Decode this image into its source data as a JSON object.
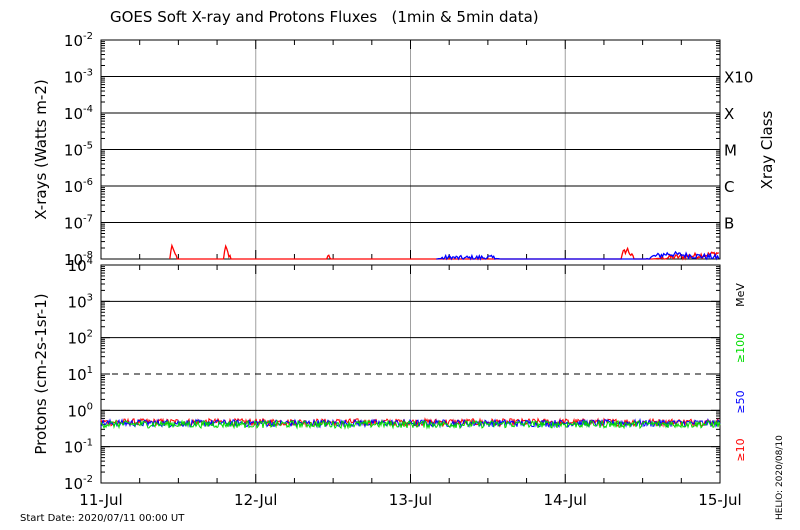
{
  "title": "GOES Soft X-ray and Protons Fluxes   (1min & 5min data)",
  "footer": {
    "start_date": "Start Date: 2020/07/11 00:00 UT",
    "stamp": "HELIO: 2020/08/10"
  },
  "colors": {
    "red": "#ff0000",
    "blue": "#0000ff",
    "green": "#00dd00",
    "grid": "#a0a0a0"
  },
  "chart_data": [
    {
      "type": "line",
      "title": "",
      "ylabel": "X-rays (Watts m-2)",
      "y2label": "Xray Class",
      "yscale": "log",
      "ylim": [
        1e-08,
        0.01
      ],
      "y_ticks": [
        {
          "base": "10",
          "exp": "-2",
          "value": 0.01
        },
        {
          "base": "10",
          "exp": "-3",
          "value": 0.001
        },
        {
          "base": "10",
          "exp": "-4",
          "value": 0.0001
        },
        {
          "base": "10",
          "exp": "-5",
          "value": 1e-05
        },
        {
          "base": "10",
          "exp": "-6",
          "value": 1e-06
        },
        {
          "base": "10",
          "exp": "-7",
          "value": 1e-07
        },
        {
          "base": "10",
          "exp": "-8",
          "value": 1e-08
        }
      ],
      "hlines": [
        0.001,
        0.0001,
        1e-05,
        1e-06,
        1e-07
      ],
      "classes": [
        {
          "label": "X10",
          "value": 0.001
        },
        {
          "label": "X",
          "value": 0.0001
        },
        {
          "label": "M",
          "value": 1e-05
        },
        {
          "label": "C",
          "value": 1e-06
        },
        {
          "label": "B",
          "value": 1e-07
        }
      ],
      "series": [
        {
          "color": "red",
          "points": [
            [
              "2020-07-11 10:40",
              1e-08
            ],
            [
              "2020-07-11 11:00",
              2.5e-08
            ],
            [
              "2020-07-11 11:20",
              1.4e-08
            ],
            [
              "2020-07-11 12:00",
              1e-08
            ],
            [
              "2020-07-11 19:00",
              1e-08
            ],
            [
              "2020-07-11 19:20",
              2.1e-08
            ],
            [
              "2020-07-11 19:50",
              1.2e-08
            ],
            [
              "2020-07-11 20:20",
              1e-08
            ],
            [
              "2020-07-12 11:00",
              1e-08
            ],
            [
              "2020-07-12 11:20",
              1.4e-08
            ],
            [
              "2020-07-12 11:40",
              1e-08
            ],
            [
              "2020-07-14 08:40",
              1e-08
            ],
            [
              "2020-07-14 09:00",
              1.5e-08
            ],
            [
              "2020-07-14 09:40",
              1.8e-08
            ],
            [
              "2020-07-14 10:20",
              1.2e-08
            ],
            [
              "2020-07-14 10:40",
              1e-08
            ],
            [
              "2020-07-14 13:30",
              1e-08
            ],
            [
              "2020-07-14 16:00",
              1.1e-08
            ],
            [
              "2020-07-14 19:00",
              1.2e-08
            ],
            [
              "2020-07-14 22:00",
              1.3e-08
            ],
            [
              "2020-07-15 00:00",
              1.5e-08
            ]
          ]
        },
        {
          "color": "blue",
          "points": [
            [
              "2020-07-13 04:00",
              1e-08
            ],
            [
              "2020-07-13 06:00",
              1.1e-08
            ],
            [
              "2020-07-13 08:00",
              1.05e-08
            ],
            [
              "2020-07-13 12:00",
              1.1e-08
            ],
            [
              "2020-07-13 14:00",
              1e-08
            ],
            [
              "2020-07-14 12:30",
              1e-08
            ],
            [
              "2020-07-14 14:00",
              1.2e-08
            ],
            [
              "2020-07-14 16:00",
              1.4e-08
            ],
            [
              "2020-07-14 18:00",
              1.3e-08
            ],
            [
              "2020-07-14 21:00",
              1.2e-08
            ],
            [
              "2020-07-15 00:00",
              1.1e-08
            ]
          ]
        }
      ]
    },
    {
      "type": "line",
      "title": "",
      "ylabel": "Protons (cm-2s-1sr-1)",
      "yscale": "log",
      "ylim": [
        0.01,
        10000
      ],
      "y_ticks": [
        {
          "base": "10",
          "exp": "4",
          "value": 10000
        },
        {
          "base": "10",
          "exp": "3",
          "value": 1000
        },
        {
          "base": "10",
          "exp": "2",
          "value": 100
        },
        {
          "base": "10",
          "exp": "1",
          "value": 10
        },
        {
          "base": "10",
          "exp": "0",
          "value": 1
        },
        {
          "base": "10",
          "exp": "-1",
          "value": 0.1
        },
        {
          "base": "10",
          "exp": "-2",
          "value": 0.01
        }
      ],
      "hlines": [
        1000,
        100,
        1,
        0.1
      ],
      "threshold": 10,
      "legend": [
        {
          "label": "MeV",
          "color": "black"
        },
        {
          "label": "≥100",
          "color": "green"
        },
        {
          "label": "≥50",
          "color": "blue"
        },
        {
          "label": "≥10",
          "color": "red"
        }
      ],
      "series": [
        {
          "name": "≥10",
          "color": "red",
          "level": 0.48
        },
        {
          "name": "≥50",
          "color": "blue",
          "level": 0.45
        },
        {
          "name": "≥100",
          "color": "green",
          "level": 0.42
        }
      ]
    }
  ],
  "x_axis": {
    "range": [
      "2020-07-11 00:00",
      "2020-07-15 00:00"
    ],
    "ticks": [
      {
        "label": "11-Jul",
        "date": "2020-07-11 00:00"
      },
      {
        "label": "12-Jul",
        "date": "2020-07-12 00:00"
      },
      {
        "label": "13-Jul",
        "date": "2020-07-13 00:00"
      },
      {
        "label": "14-Jul",
        "date": "2020-07-14 00:00"
      },
      {
        "label": "15-Jul",
        "date": "2020-07-15 00:00"
      }
    ]
  }
}
